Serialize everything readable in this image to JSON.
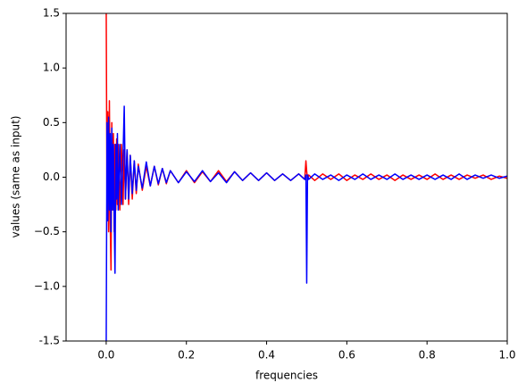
{
  "chart_data": {
    "type": "line",
    "x_label": "frequencies",
    "y_label": "values (same as input)",
    "x": [
      0,
      0.002,
      0.004,
      0.006,
      0.008,
      0.01,
      0.012,
      0.014,
      0.016,
      0.018,
      0.02,
      0.022,
      0.024,
      0.026,
      0.028,
      0.03,
      0.034,
      0.038,
      0.042,
      0.045,
      0.048,
      0.052,
      0.056,
      0.06,
      0.065,
      0.07,
      0.075,
      0.08,
      0.09,
      0.1,
      0.11,
      0.12,
      0.13,
      0.14,
      0.15,
      0.16,
      0.18,
      0.2,
      0.22,
      0.24,
      0.26,
      0.28,
      0.3,
      0.32,
      0.34,
      0.36,
      0.38,
      0.4,
      0.42,
      0.44,
      0.46,
      0.48,
      0.495,
      0.498,
      0.5,
      0.502,
      0.505,
      0.52,
      0.54,
      0.56,
      0.58,
      0.6,
      0.62,
      0.64,
      0.66,
      0.68,
      0.7,
      0.72,
      0.74,
      0.76,
      0.78,
      0.8,
      0.82,
      0.84,
      0.86,
      0.88,
      0.9,
      0.92,
      0.94,
      0.96,
      0.98,
      1.0
    ],
    "series": [
      {
        "color": "#ff0000",
        "values": [
          1.6,
          -0.3,
          0.6,
          -0.5,
          0.7,
          -0.4,
          -0.85,
          0.5,
          -0.3,
          0.4,
          -0.5,
          0.3,
          -0.3,
          0.35,
          -0.25,
          0.3,
          -0.3,
          0.3,
          -0.25,
          0.25,
          -0.2,
          0.25,
          -0.25,
          0.2,
          -0.2,
          0.15,
          -0.15,
          0.12,
          -0.12,
          0.1,
          -0.08,
          0.1,
          -0.07,
          0.08,
          -0.06,
          0.06,
          -0.05,
          0.06,
          -0.05,
          0.05,
          -0.04,
          0.06,
          -0.04,
          0.05,
          -0.03,
          0.04,
          -0.03,
          0.04,
          -0.03,
          0.03,
          -0.03,
          0.03,
          -0.02,
          0.15,
          0.05,
          -0.02,
          0.02,
          -0.03,
          0.03,
          -0.02,
          0.03,
          -0.03,
          0.02,
          -0.02,
          0.03,
          -0.02,
          0.02,
          -0.03,
          0.02,
          -0.02,
          0.02,
          -0.02,
          0.03,
          -0.02,
          0.02,
          -0.02,
          0.02,
          -0.01,
          0.02,
          -0.02,
          0.01,
          -0.01
        ]
      },
      {
        "color": "#0000ff",
        "values": [
          -1.6,
          0.5,
          -0.4,
          0.55,
          -0.3,
          0.4,
          -0.5,
          0.45,
          -0.3,
          0.3,
          -0.4,
          -0.88,
          0.3,
          -0.2,
          0.4,
          -0.3,
          0.3,
          -0.25,
          0.2,
          0.65,
          -0.2,
          0.25,
          -0.2,
          0.2,
          -0.15,
          0.15,
          -0.12,
          0.1,
          -0.1,
          0.14,
          -0.08,
          0.1,
          -0.06,
          0.08,
          -0.05,
          0.06,
          -0.05,
          0.05,
          -0.04,
          0.06,
          -0.04,
          0.04,
          -0.05,
          0.05,
          -0.03,
          0.04,
          -0.03,
          0.04,
          -0.03,
          0.03,
          -0.03,
          0.03,
          -0.02,
          0.02,
          -0.97,
          0.02,
          -0.02,
          0.03,
          -0.02,
          0.02,
          -0.03,
          0.02,
          -0.02,
          0.03,
          -0.02,
          0.02,
          -0.02,
          0.03,
          -0.02,
          0.02,
          -0.02,
          0.02,
          -0.02,
          0.02,
          -0.02,
          0.03,
          -0.02,
          0.02,
          -0.01,
          0.02,
          -0.01,
          0.01
        ]
      }
    ],
    "xlim": [
      -0.1,
      1.0
    ],
    "xticks": [
      {
        "value": 0,
        "label": "0.0"
      },
      0.2,
      0.4,
      0.6,
      0.8,
      {
        "value": 1,
        "label": "1.0"
      }
    ],
    "ylim": [
      -1.5,
      1.5
    ],
    "yticks": [
      -1.5,
      {
        "value": -1,
        "label": "−1.0"
      },
      {
        "value": -0.5,
        "label": "−0.5"
      },
      {
        "value": 0,
        "label": "0.0"
      },
      0.5,
      {
        "value": 1,
        "label": "1.0"
      },
      1.5
    ]
  }
}
